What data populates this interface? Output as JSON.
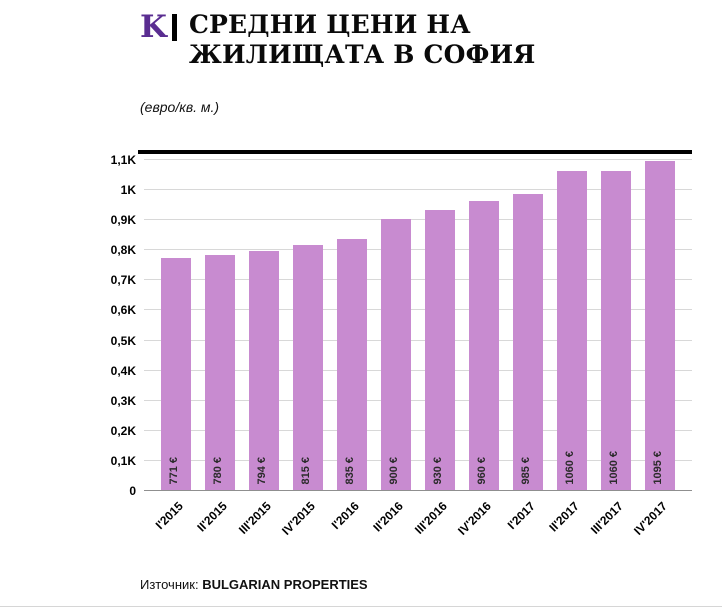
{
  "logo": {
    "letter": "K"
  },
  "header": {
    "title_line1": "СРЕДНИ ЦЕНИ НА",
    "title_line2": "ЖИЛИЩАТА В СОФИЯ",
    "subtitle": "(евро/кв. м.)"
  },
  "chart_data": {
    "type": "bar",
    "title": "СРЕДНИ ЦЕНИ НА ЖИЛИЩАТА В СОФИЯ",
    "unit_label": "(евро/кв. м.)",
    "categories": [
      "I'2015",
      "II'2015",
      "III'2015",
      "IV'2015",
      "I'2016",
      "II'2016",
      "III'2016",
      "IV'2016",
      "I'2017",
      "II'2017",
      "III'2017",
      "IV'2017"
    ],
    "values": [
      771,
      780,
      794,
      815,
      835,
      900,
      930,
      960,
      985,
      1060,
      1060,
      1095
    ],
    "value_labels": [
      "771 €",
      "780 €",
      "794 €",
      "815 €",
      "835 €",
      "900 €",
      "930 €",
      "960 €",
      "985 €",
      "1060 €",
      "1060 €",
      "1095 €"
    ],
    "xlabel": "",
    "ylabel": "",
    "ylim": [
      0,
      1100
    ],
    "ytick_step": 100,
    "ytick_labels": [
      "0",
      "0,1K",
      "0,2K",
      "0,3K",
      "0,4K",
      "0,5K",
      "0,6K",
      "0,7K",
      "0,8K",
      "0,9K",
      "1K",
      "1,1K"
    ],
    "grid": true,
    "legend": "none",
    "bar_color": "#c88bd0"
  },
  "footer": {
    "source_label": "Източник:",
    "source_value": "BULGARIAN PROPERTIES"
  },
  "colors": {
    "bar": "#c88bd0",
    "logo": "#5a2d91",
    "grid": "#d8d8d8",
    "baseline": "#8f8f8f",
    "rule": "#000000"
  }
}
